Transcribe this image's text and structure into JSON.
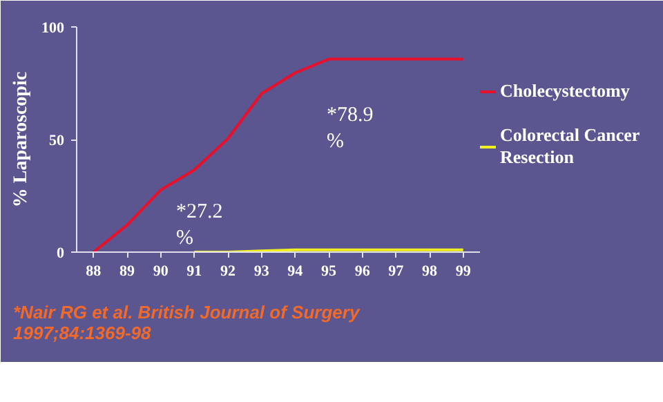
{
  "chart_data": {
    "type": "line",
    "ylabel": "% Laparoscopic",
    "x": [
      88,
      89,
      90,
      91,
      92,
      93,
      94,
      95,
      96,
      97,
      98,
      99
    ],
    "series": [
      {
        "name": "Cholecystectomy",
        "color": "#e8102a",
        "values": [
          0,
          12,
          27.6,
          36.5,
          50.4,
          70.4,
          79.6,
          85.7,
          85.7,
          85.7,
          85.7,
          85.7
        ]
      },
      {
        "name": "Colorectal Cancer Resection",
        "color": "#f0f020",
        "values": [
          null,
          null,
          null,
          0,
          0,
          0.5,
          1,
          1,
          1,
          1,
          1,
          1
        ]
      }
    ],
    "xlim": [
      87.5,
      99.5
    ],
    "ylim": [
      0,
      100
    ],
    "xticks": [
      88,
      89,
      90,
      91,
      92,
      93,
      94,
      95,
      96,
      97,
      98,
      99
    ],
    "yticks": [
      0,
      50,
      100
    ],
    "grid": false,
    "legend": "right",
    "marker": "none",
    "line_style": "solid",
    "annotations": [
      "*78.9 %",
      "*27.2 %",
      "*Nair RG et al. British Journal of Surgery 1997;84:1369-98"
    ]
  }
}
